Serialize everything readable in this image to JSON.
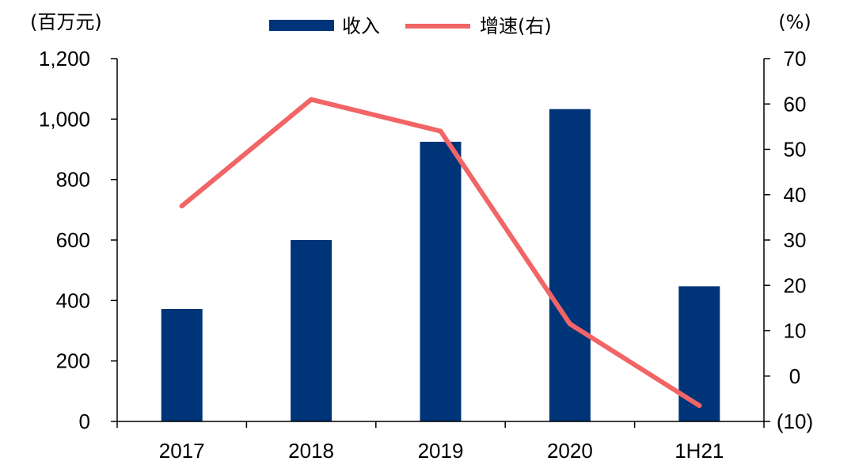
{
  "chart_data": {
    "type": "bar",
    "categories": [
      "2017",
      "2018",
      "2019",
      "2020",
      "1H21"
    ],
    "left_axis": {
      "unit_label": "(百万元)",
      "ylim": [
        0,
        1200
      ],
      "ticks": [
        0,
        200,
        400,
        600,
        800,
        1000,
        1200
      ],
      "tick_labels": [
        "0",
        "200",
        "400",
        "600",
        "800",
        "1,000",
        "1,200"
      ]
    },
    "right_axis": {
      "unit_label": "(%)",
      "ylim": [
        -10,
        70
      ],
      "ticks": [
        -10,
        0,
        10,
        20,
        30,
        40,
        50,
        60,
        70
      ],
      "tick_labels": [
        "(10)",
        "0",
        "10",
        "20",
        "30",
        "40",
        "50",
        "60",
        "70"
      ]
    },
    "series": [
      {
        "name": "收入",
        "type": "bar",
        "axis": "left",
        "color": "#003478",
        "values": [
          372,
          600,
          925,
          1033,
          447
        ]
      },
      {
        "name": "增速(右)",
        "type": "line",
        "axis": "right",
        "color": "#F26566",
        "values": [
          37.5,
          61,
          54,
          11.5,
          -6.5
        ]
      }
    ],
    "legend_position": "top-center",
    "grid": false
  }
}
